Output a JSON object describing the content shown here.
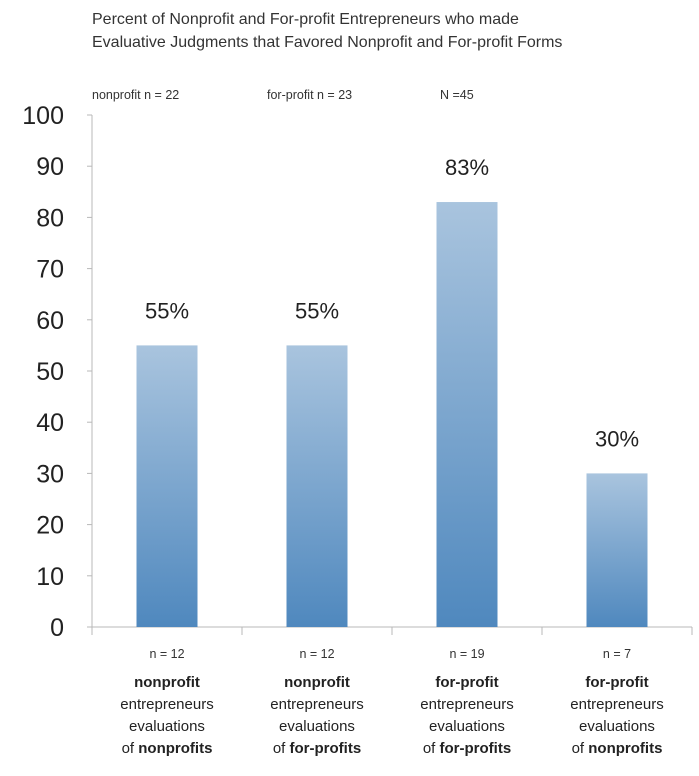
{
  "title": {
    "line1": "Percent of Nonprofit and For-profit Entrepreneurs who made",
    "line2": "Evaluative Judgments that Favored Nonprofit and For-profit Forms"
  },
  "samples": {
    "nonprofit": "nonprofit n = 22",
    "forprofit": "for-profit n = 23",
    "total": "N =45"
  },
  "colors": {
    "bar_top": "#a9c4de",
    "bar_bottom": "#4f88be",
    "axis": "#b8b8b8"
  },
  "chart_data": {
    "type": "bar",
    "title": "Percent of Nonprofit and For-profit Entrepreneurs who made Evaluative Judgments that Favored Nonprofit and For-profit Forms",
    "ylim": [
      0,
      100
    ],
    "yticks": [
      0,
      10,
      20,
      30,
      40,
      50,
      60,
      70,
      80,
      90,
      100
    ],
    "values": [
      55,
      55,
      83,
      30
    ],
    "data_labels": [
      "55%",
      "55%",
      "83%",
      "30%"
    ],
    "categories": [
      {
        "n": "n = 12",
        "line1": "nonprofit",
        "line2": "entrepreneurs",
        "line3": "evaluations",
        "line4_pre": "of ",
        "line4_bold": "nonprofits"
      },
      {
        "n": "n = 12",
        "line1": "nonprofit",
        "line2": "entrepreneurs",
        "line3": "evaluations",
        "line4_pre": "of ",
        "line4_bold": "for-profits"
      },
      {
        "n": "n = 19",
        "line1": "for-profit",
        "line2": "entrepreneurs",
        "line3": "evaluations",
        "line4_pre": "of ",
        "line4_bold": "for-profits"
      },
      {
        "n": "n = 7",
        "line1": "for-profit",
        "line2": "entrepreneurs",
        "line3": "evaluations",
        "line4_pre": "of ",
        "line4_bold": "nonprofits"
      }
    ]
  }
}
